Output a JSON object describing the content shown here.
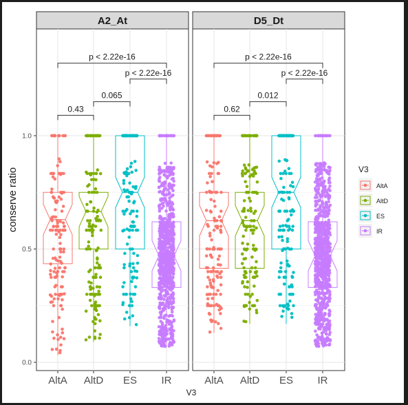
{
  "chart_data": {
    "type": "box",
    "title": "",
    "xlabel": "V3",
    "ylabel": "conserve ratio",
    "ylim": [
      0,
      1.35
    ],
    "yticks": [
      "0.0",
      "0.5",
      "1.0"
    ],
    "ytick_values": [
      0,
      0.5,
      1.0
    ],
    "categories": [
      "AltA",
      "AltD",
      "ES",
      "IR"
    ],
    "colors": {
      "AltA": "#F8766D",
      "AltD": "#7CAE00",
      "ES": "#00BFC4",
      "IR": "#C77CFF"
    },
    "legend": {
      "title": "V3",
      "position": "right",
      "items": [
        "AltA",
        "AltD",
        "ES",
        "IR"
      ]
    },
    "grid": true,
    "panels": [
      {
        "name": "A2_At",
        "boxes": [
          {
            "category": "AltA",
            "q1": 0.435,
            "median": 0.63,
            "q3": 0.75,
            "whisker_low": 0.03,
            "whisker_high": 1.0
          },
          {
            "category": "AltD",
            "q1": 0.5,
            "median": 0.665,
            "q3": 0.75,
            "whisker_low": 0.09,
            "whisker_high": 1.0
          },
          {
            "category": "ES",
            "q1": 0.5,
            "median": 0.75,
            "q3": 1.0,
            "whisker_low": 0.16,
            "whisker_high": 1.0
          },
          {
            "category": "IR",
            "q1": 0.33,
            "median": 0.47,
            "q3": 0.62,
            "whisker_low": 0.07,
            "whisker_high": 1.0
          }
        ],
        "comparisons": [
          {
            "groups": [
              "AltA",
              "AltD"
            ],
            "label": "0.43"
          },
          {
            "groups": [
              "AltD",
              "ES"
            ],
            "label": "0.065"
          },
          {
            "groups": [
              "ES",
              "IR"
            ],
            "label": "p < 2.22e-16"
          },
          {
            "groups": [
              "AltA",
              "IR"
            ],
            "label": "p < 2.22e-16"
          }
        ]
      },
      {
        "name": "D5_Dt",
        "boxes": [
          {
            "category": "AltA",
            "q1": 0.415,
            "median": 0.625,
            "q3": 0.75,
            "whisker_low": 0.13,
            "whisker_high": 1.0
          },
          {
            "category": "AltD",
            "q1": 0.415,
            "median": 0.625,
            "q3": 0.75,
            "whisker_low": 0.17,
            "whisker_high": 1.0
          },
          {
            "category": "ES",
            "q1": 0.5,
            "median": 0.75,
            "q3": 1.0,
            "whisker_low": 0.17,
            "whisker_high": 1.0
          },
          {
            "category": "IR",
            "q1": 0.33,
            "median": 0.47,
            "q3": 0.62,
            "whisker_low": 0.07,
            "whisker_high": 1.0
          }
        ],
        "comparisons": [
          {
            "groups": [
              "AltA",
              "AltD"
            ],
            "label": "0.62"
          },
          {
            "groups": [
              "AltD",
              "ES"
            ],
            "label": "0.012"
          },
          {
            "groups": [
              "ES",
              "IR"
            ],
            "label": "p < 2.22e-16"
          },
          {
            "groups": [
              "AltA",
              "IR"
            ],
            "label": "p < 2.22e-16"
          }
        ]
      }
    ]
  }
}
